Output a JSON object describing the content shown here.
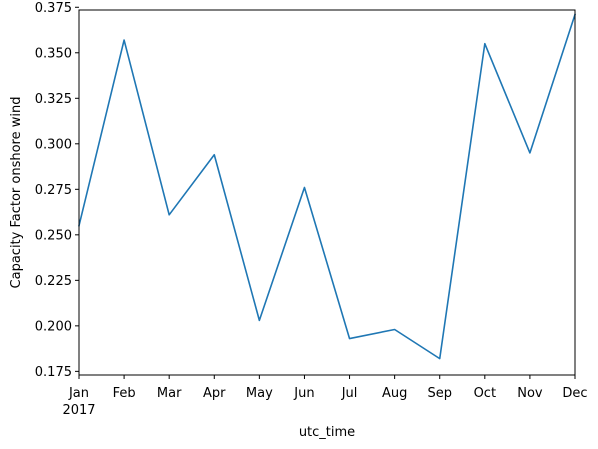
{
  "chart_data": {
    "type": "line",
    "title": "",
    "xlabel": "utc_time",
    "ylabel": "Capacity Factor onshore wind",
    "x": [
      "2017-01",
      "2017-02",
      "2017-03",
      "2017-04",
      "2017-05",
      "2017-06",
      "2017-07",
      "2017-08",
      "2017-09",
      "2017-10",
      "2017-11",
      "2017-12"
    ],
    "x_tick_labels": [
      "Jan",
      "Feb",
      "Mar",
      "Apr",
      "May",
      "Jun",
      "Jul",
      "Aug",
      "Sep",
      "Oct",
      "Nov",
      "Dec"
    ],
    "x_year_label": "2017",
    "series": [
      {
        "color": "#1f77b4",
        "values": [
          0.255,
          0.357,
          0.261,
          0.294,
          0.203,
          0.276,
          0.193,
          0.198,
          0.182,
          0.355,
          0.295,
          0.371
        ]
      }
    ],
    "ylim": [
      0.173,
      0.3735
    ],
    "y_ticks": [
      0.175,
      0.2,
      0.225,
      0.25,
      0.275,
      0.3,
      0.325,
      0.35,
      0.375
    ],
    "y_tick_labels": [
      "0.175",
      "0.200",
      "0.225",
      "0.250",
      "0.275",
      "0.300",
      "0.325",
      "0.350",
      "0.375"
    ],
    "grid": false,
    "legend": "none"
  }
}
